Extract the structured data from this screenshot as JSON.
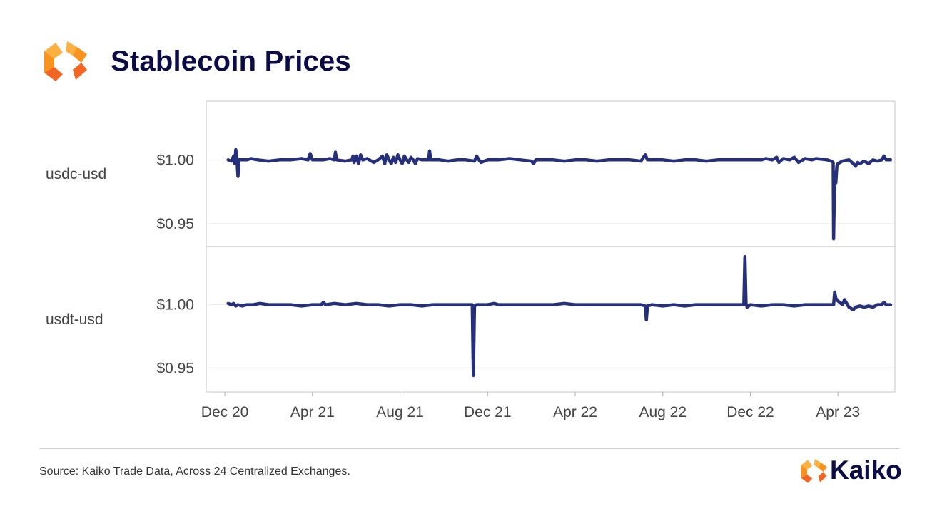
{
  "header": {
    "title": "Stablecoin Prices"
  },
  "footer": {
    "source": "Source: Kaiko Trade Data, Across 24 Centralized Exchanges.",
    "brand": "Kaiko"
  },
  "colors": {
    "line": "#26307a",
    "title": "#0b0b45",
    "logo_orange": "#f7931e",
    "logo_light": "#fbb040"
  },
  "chart_data": {
    "type": "line",
    "title": "Stablecoin Prices",
    "x_ticks": [
      "Dec 20",
      "Apr 21",
      "Aug 21",
      "Dec 21",
      "Apr 22",
      "Aug 22",
      "Dec 22",
      "Apr 23"
    ],
    "x_tick_months": [
      0,
      4,
      8,
      12,
      16,
      20,
      24,
      28
    ],
    "x_start_label": "Dec 20",
    "x_range_months": [
      -0.85,
      30.6
    ],
    "panels": [
      {
        "name": "usdc-usd",
        "ylim": [
          0.932,
          1.046
        ],
        "y_ticks": [
          1.0,
          0.95
        ],
        "y_tick_labels": [
          "$1.00",
          "$0.95"
        ],
        "series": [
          [
            0.15,
            1.0
          ],
          [
            0.3,
            0.999
          ],
          [
            0.4,
            1.003
          ],
          [
            0.45,
            0.997
          ],
          [
            0.5,
            1.008
          ],
          [
            0.55,
            1.0
          ],
          [
            0.6,
            0.987
          ],
          [
            0.65,
            1.0
          ],
          [
            0.8,
            1.0
          ],
          [
            1.0,
            1.0
          ],
          [
            1.2,
            1.001
          ],
          [
            1.5,
            1.0
          ],
          [
            2.0,
            0.999
          ],
          [
            2.5,
            1.0
          ],
          [
            3.0,
            1.0
          ],
          [
            3.5,
            1.001
          ],
          [
            3.8,
            1.0
          ],
          [
            3.9,
            1.005
          ],
          [
            4.0,
            1.0
          ],
          [
            4.5,
            1.0
          ],
          [
            4.8,
            1.001
          ],
          [
            5.0,
            1.0
          ],
          [
            5.05,
            1.006
          ],
          [
            5.1,
            1.0
          ],
          [
            5.5,
            0.999
          ],
          [
            5.8,
            1.0
          ],
          [
            5.85,
            1.003
          ],
          [
            5.9,
            0.998
          ],
          [
            6.0,
            1.003
          ],
          [
            6.1,
            0.997
          ],
          [
            6.2,
            1.004
          ],
          [
            6.3,
            1.0
          ],
          [
            6.5,
            1.001
          ],
          [
            6.8,
            0.998
          ],
          [
            7.0,
            1.0
          ],
          [
            7.2,
            1.003
          ],
          [
            7.3,
            0.997
          ],
          [
            7.4,
            1.004
          ],
          [
            7.5,
            1.0
          ],
          [
            7.6,
            0.997
          ],
          [
            7.7,
            1.002
          ],
          [
            7.8,
            0.998
          ],
          [
            7.9,
            1.004
          ],
          [
            8.0,
            1.0
          ],
          [
            8.1,
            0.997
          ],
          [
            8.2,
            1.003
          ],
          [
            8.3,
            1.0
          ],
          [
            8.4,
            0.998
          ],
          [
            8.5,
            1.002
          ],
          [
            8.6,
            1.0
          ],
          [
            8.7,
            0.997
          ],
          [
            8.8,
            1.001
          ],
          [
            9.0,
            1.0
          ],
          [
            9.3,
            1.0
          ],
          [
            9.35,
            1.007
          ],
          [
            9.4,
            1.0
          ],
          [
            9.8,
            1.0
          ],
          [
            10.2,
            0.999
          ],
          [
            10.6,
            1.0
          ],
          [
            11.0,
            1.0
          ],
          [
            11.4,
            0.999
          ],
          [
            11.5,
            1.003
          ],
          [
            11.6,
            1.0
          ],
          [
            11.7,
            0.998
          ],
          [
            12.0,
            1.0
          ],
          [
            12.5,
            1.0
          ],
          [
            13.0,
            1.001
          ],
          [
            13.5,
            1.0
          ],
          [
            14.0,
            0.999
          ],
          [
            14.1,
            0.997
          ],
          [
            14.2,
            1.0
          ],
          [
            15.0,
            1.0
          ],
          [
            15.5,
            0.999
          ],
          [
            16.0,
            1.0
          ],
          [
            16.5,
            1.0
          ],
          [
            17.0,
            0.999
          ],
          [
            17.5,
            1.0
          ],
          [
            18.0,
            1.0
          ],
          [
            18.5,
            1.0
          ],
          [
            19.0,
            0.999
          ],
          [
            19.2,
            1.004
          ],
          [
            19.3,
            1.0
          ],
          [
            20.0,
            1.0
          ],
          [
            20.5,
            0.999
          ],
          [
            21.0,
            1.0
          ],
          [
            21.5,
            1.0
          ],
          [
            22.0,
            0.999
          ],
          [
            22.5,
            1.0
          ],
          [
            23.0,
            1.0
          ],
          [
            23.5,
            1.0
          ],
          [
            24.0,
            1.0
          ],
          [
            24.5,
            1.0
          ],
          [
            24.7,
            1.001
          ],
          [
            25.0,
            1.0
          ],
          [
            25.2,
            1.002
          ],
          [
            25.3,
            0.998
          ],
          [
            25.5,
            1.001
          ],
          [
            25.8,
            1.0
          ],
          [
            26.0,
            1.002
          ],
          [
            26.2,
            0.998
          ],
          [
            26.5,
            1.001
          ],
          [
            26.8,
            1.0
          ],
          [
            27.0,
            1.001
          ],
          [
            27.5,
            1.0
          ],
          [
            27.7,
            0.999
          ],
          [
            27.78,
            0.998
          ],
          [
            27.8,
            0.938
          ],
          [
            27.85,
            0.99
          ],
          [
            27.9,
            0.982
          ],
          [
            27.95,
            0.995
          ],
          [
            28.0,
            0.997
          ],
          [
            28.2,
            0.999
          ],
          [
            28.5,
            1.0
          ],
          [
            28.7,
            0.997
          ],
          [
            28.8,
            0.995
          ],
          [
            28.9,
            0.998
          ],
          [
            29.0,
            0.997
          ],
          [
            29.2,
            0.999
          ],
          [
            29.4,
            0.997
          ],
          [
            29.6,
            1.0
          ],
          [
            29.8,
            0.999
          ],
          [
            30.0,
            1.0
          ],
          [
            30.1,
            1.003
          ],
          [
            30.2,
            1.0
          ],
          [
            30.4,
            1.0
          ]
        ]
      },
      {
        "name": "usdt-usd",
        "ylim": [
          0.931,
          1.046
        ],
        "y_ticks": [
          1.0,
          0.95
        ],
        "y_tick_labels": [
          "$1.00",
          "$0.95"
        ],
        "series": [
          [
            0.15,
            1.001
          ],
          [
            0.3,
            1.0
          ],
          [
            0.4,
            1.001
          ],
          [
            0.5,
            0.999
          ],
          [
            0.6,
            1.0
          ],
          [
            0.8,
            0.999
          ],
          [
            1.0,
            1.0
          ],
          [
            1.3,
            1.0
          ],
          [
            1.6,
            1.001
          ],
          [
            2.0,
            1.0
          ],
          [
            2.5,
            1.0
          ],
          [
            3.0,
            1.0
          ],
          [
            3.5,
            0.999
          ],
          [
            4.0,
            1.0
          ],
          [
            4.4,
            1.0
          ],
          [
            4.5,
            1.002
          ],
          [
            4.6,
            1.0
          ],
          [
            5.0,
            1.001
          ],
          [
            5.5,
            1.0
          ],
          [
            6.0,
            1.001
          ],
          [
            6.5,
            1.0
          ],
          [
            7.0,
            1.0
          ],
          [
            7.5,
            0.999
          ],
          [
            8.0,
            1.0
          ],
          [
            8.5,
            1.0
          ],
          [
            9.0,
            0.999
          ],
          [
            9.5,
            1.0
          ],
          [
            10.0,
            1.0
          ],
          [
            10.5,
            1.0
          ],
          [
            11.0,
            1.0
          ],
          [
            11.3,
            1.0
          ],
          [
            11.35,
            0.944
          ],
          [
            11.4,
            0.999
          ],
          [
            11.5,
            1.0
          ],
          [
            12.0,
            1.0
          ],
          [
            12.3,
            1.001
          ],
          [
            12.5,
            1.0
          ],
          [
            13.0,
            1.0
          ],
          [
            13.5,
            1.0
          ],
          [
            14.0,
            1.0
          ],
          [
            14.5,
            1.0
          ],
          [
            15.0,
            1.0
          ],
          [
            15.5,
            1.001
          ],
          [
            16.0,
            1.0
          ],
          [
            16.5,
            1.0
          ],
          [
            17.0,
            1.0
          ],
          [
            17.5,
            1.0
          ],
          [
            18.0,
            1.0
          ],
          [
            18.5,
            1.0
          ],
          [
            19.0,
            1.0
          ],
          [
            19.2,
            0.999
          ],
          [
            19.25,
            0.988
          ],
          [
            19.3,
            0.999
          ],
          [
            19.5,
            1.0
          ],
          [
            20.0,
            0.999
          ],
          [
            20.5,
            1.0
          ],
          [
            21.0,
            0.999
          ],
          [
            21.5,
            1.0
          ],
          [
            22.0,
            1.0
          ],
          [
            22.5,
            1.0
          ],
          [
            23.0,
            1.0
          ],
          [
            23.5,
            1.0
          ],
          [
            23.7,
            1.0
          ],
          [
            23.75,
            1.038
          ],
          [
            23.8,
            1.001
          ],
          [
            23.85,
            0.998
          ],
          [
            24.0,
            1.0
          ],
          [
            24.5,
            0.999
          ],
          [
            25.0,
            1.0
          ],
          [
            25.5,
            1.0
          ],
          [
            26.0,
            0.999
          ],
          [
            26.5,
            1.0
          ],
          [
            27.0,
            1.0
          ],
          [
            27.5,
            1.0
          ],
          [
            27.8,
            1.0
          ],
          [
            27.85,
            1.01
          ],
          [
            27.9,
            1.005
          ],
          [
            28.0,
            1.003
          ],
          [
            28.2,
            1.0
          ],
          [
            28.3,
            1.004
          ],
          [
            28.5,
            0.998
          ],
          [
            28.7,
            0.996
          ],
          [
            28.8,
            0.998
          ],
          [
            29.0,
            0.999
          ],
          [
            29.2,
            0.998
          ],
          [
            29.4,
            0.999
          ],
          [
            29.6,
            0.998
          ],
          [
            29.8,
            1.0
          ],
          [
            30.0,
            1.0
          ],
          [
            30.1,
            1.002
          ],
          [
            30.2,
            1.0
          ],
          [
            30.4,
            1.0
          ]
        ]
      }
    ]
  }
}
